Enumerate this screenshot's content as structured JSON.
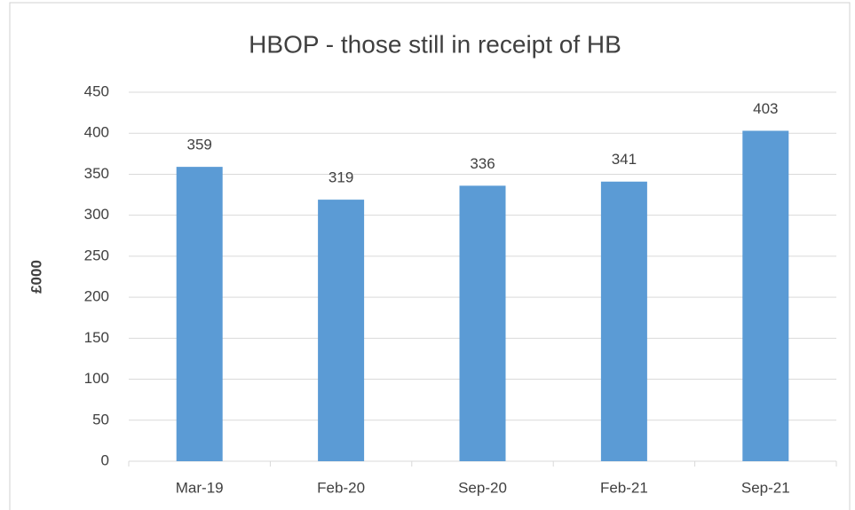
{
  "chart_data": {
    "type": "bar",
    "title": "HBOP - those still in receipt of HB",
    "y_label": "£000",
    "categories": [
      "Mar-19",
      "Feb-20",
      "Sep-20",
      "Feb-21",
      "Sep-21"
    ],
    "values": [
      359,
      319,
      336,
      341,
      403
    ],
    "color": "#5b9bd5",
    "ylim": [
      0,
      450
    ],
    "yticks": [
      0,
      50,
      100,
      150,
      200,
      250,
      300,
      350,
      400,
      450
    ],
    "grid": true
  }
}
